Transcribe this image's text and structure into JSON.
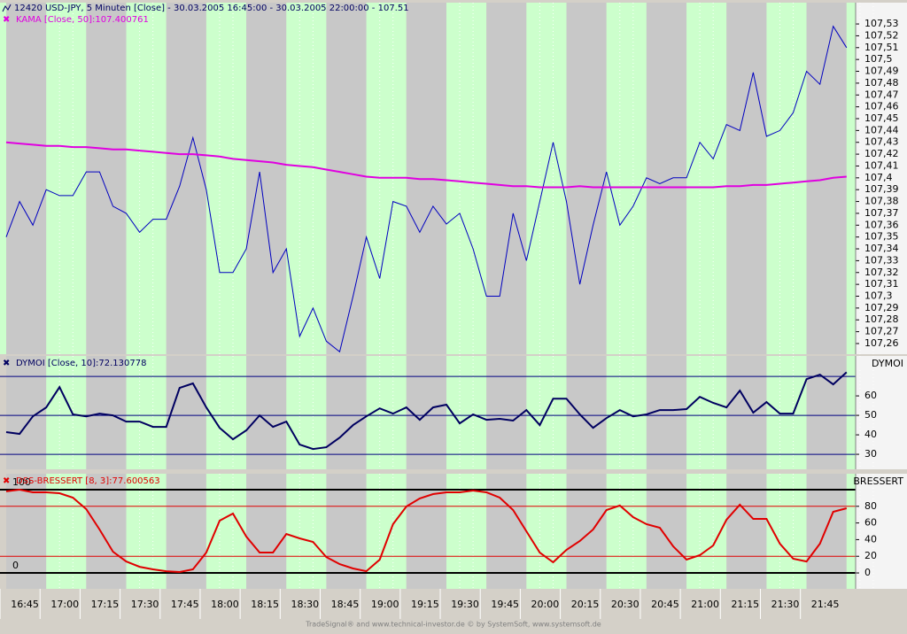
{
  "chart_data": [
    {
      "type": "line",
      "title": "12420  USD-JPY, 5 Minuten [Close] - 30.03.2005 16:45:00 - 30.03.2005 22:00:00 - 107.51",
      "ylim": [
        107.251,
        107.548
      ],
      "yticks": [
        {
          "value": 107.26,
          "label": "107,26"
        },
        {
          "value": 107.27,
          "label": "107,27"
        },
        {
          "value": 107.28,
          "label": "107,28"
        },
        {
          "value": 107.29,
          "label": "107,29"
        },
        {
          "value": 107.3,
          "label": "107,3"
        },
        {
          "value": 107.31,
          "label": "107,31"
        },
        {
          "value": 107.32,
          "label": "107,32"
        },
        {
          "value": 107.33,
          "label": "107,33"
        },
        {
          "value": 107.34,
          "label": "107,34"
        },
        {
          "value": 107.35,
          "label": "107,35"
        },
        {
          "value": 107.36,
          "label": "107,36"
        },
        {
          "value": 107.37,
          "label": "107,37"
        },
        {
          "value": 107.38,
          "label": "107,38"
        },
        {
          "value": 107.39,
          "label": "107,39"
        },
        {
          "value": 107.4,
          "label": "107,4"
        },
        {
          "value": 107.41,
          "label": "107,41"
        },
        {
          "value": 107.42,
          "label": "107,42"
        },
        {
          "value": 107.43,
          "label": "107,43"
        },
        {
          "value": 107.44,
          "label": "107,44"
        },
        {
          "value": 107.45,
          "label": "107,45"
        },
        {
          "value": 107.46,
          "label": "107,46"
        },
        {
          "value": 107.47,
          "label": "107,47"
        },
        {
          "value": 107.48,
          "label": "107,48"
        },
        {
          "value": 107.49,
          "label": "107,49"
        },
        {
          "value": 107.5,
          "label": "107,5"
        },
        {
          "value": 107.51,
          "label": "107,51"
        },
        {
          "value": 107.52,
          "label": "107,52"
        },
        {
          "value": 107.53,
          "label": "107,53"
        }
      ],
      "series": [
        {
          "color": "#0000c0",
          "values": [
            107.35,
            107.38,
            107.36,
            107.39,
            107.385,
            107.385,
            107.405,
            107.405,
            107.376,
            107.37,
            107.354,
            107.365,
            107.365,
            107.393,
            107.434,
            107.39,
            107.32,
            107.32,
            107.34,
            107.405,
            107.32,
            107.34,
            107.266,
            107.29,
            107.262,
            107.253,
            107.3,
            107.35,
            107.315,
            107.38,
            107.376,
            107.354,
            107.376,
            107.361,
            107.37,
            107.34,
            107.3,
            107.3,
            107.37,
            107.33,
            107.38,
            107.43,
            107.38,
            107.31,
            107.36,
            107.405,
            107.36,
            107.376,
            107.4,
            107.395,
            107.4,
            107.4,
            107.43,
            107.416,
            107.445,
            107.44,
            107.489,
            107.435,
            107.44,
            107.455,
            107.49,
            107.479,
            107.528,
            107.51
          ]
        },
        {
          "name": "KAMA [Close, 50]:107.400761",
          "color": "#e000e0",
          "values": [
            107.43,
            107.429,
            107.428,
            107.427,
            107.427,
            107.426,
            107.426,
            107.425,
            107.424,
            107.424,
            107.423,
            107.422,
            107.421,
            107.42,
            107.42,
            107.419,
            107.418,
            107.416,
            107.415,
            107.414,
            107.413,
            107.411,
            107.41,
            107.409,
            107.407,
            107.405,
            107.403,
            107.401,
            107.4,
            107.4,
            107.4,
            107.399,
            107.399,
            107.398,
            107.397,
            107.396,
            107.395,
            107.394,
            107.393,
            107.393,
            107.392,
            107.392,
            107.392,
            107.393,
            107.392,
            107.392,
            107.392,
            107.392,
            107.392,
            107.392,
            107.392,
            107.392,
            107.392,
            107.392,
            107.393,
            107.393,
            107.394,
            107.394,
            107.395,
            107.396,
            107.397,
            107.398,
            107.4,
            107.401
          ]
        }
      ]
    },
    {
      "type": "line",
      "axis_label": "DYMOI",
      "ylim": [
        22.3,
        80.5
      ],
      "yticks": [
        30,
        40,
        50,
        60
      ],
      "hlines": [
        70,
        50,
        30
      ],
      "hline_color": "#000080",
      "series": [
        {
          "name": "DYMOI [Close, 10]:72.130778",
          "color": "#000060",
          "values": [
            41.4,
            40.5,
            49.5,
            54.1,
            64.5,
            50.5,
            49.5,
            50.9,
            50,
            46.8,
            46.8,
            44.1,
            44.1,
            64.1,
            66.4,
            54.1,
            43.6,
            37.7,
            42.3,
            50,
            44.1,
            46.8,
            35,
            32.7,
            33.6,
            38.6,
            45,
            49.5,
            53.6,
            50.9,
            54.1,
            47.7,
            54.1,
            55.5,
            45.9,
            50.5,
            47.7,
            48.2,
            47.3,
            52.7,
            45,
            58.6,
            58.6,
            50.5,
            43.6,
            48.6,
            52.7,
            49.5,
            50.5,
            52.7,
            52.7,
            53.2,
            59.5,
            56.4,
            54.1,
            62.7,
            51.4,
            56.8,
            50.9,
            50.9,
            68.6,
            70.9,
            65.9,
            72.13
          ]
        }
      ]
    },
    {
      "type": "line",
      "axis_label": "BRESSERT",
      "ylim": [
        -19.1,
        119.1
      ],
      "yticks": [
        0,
        20,
        40,
        60,
        80
      ],
      "hlines_black": [
        0,
        100
      ],
      "hlines_red": [
        20,
        80
      ],
      "categories": [
        null,
        "16:45",
        null,
        null,
        "17:00",
        null,
        null,
        "17:15",
        null,
        null,
        "17:30",
        null,
        null,
        "17:45",
        null,
        null,
        "18:00",
        null,
        null,
        "18:15",
        null,
        null,
        "18:30",
        null,
        null,
        "18:45",
        null,
        null,
        "19:00",
        null,
        null,
        "19:15",
        null,
        null,
        "19:30",
        null,
        null,
        "19:45",
        null,
        null,
        "20:00",
        null,
        null,
        "20:15",
        null,
        null,
        "20:30",
        null,
        null,
        "20:45",
        null,
        null,
        "21:00",
        null,
        null,
        "21:15",
        null,
        null,
        "21:30",
        null,
        null,
        "21:45",
        null,
        null
      ],
      "series": [
        {
          "name": "DSS-BRESSERT [8, 3]:77.600563",
          "color": "#e00000",
          "values": [
            97.9,
            100,
            96.8,
            96.8,
            95.7,
            90.4,
            76.6,
            52.1,
            25.5,
            13.8,
            7.4,
            4.3,
            2.1,
            1.1,
            4.3,
            24.5,
            62.8,
            71.3,
            43.6,
            24.5,
            24.5,
            46.8,
            41.5,
            37.2,
            19.1,
            10.6,
            5.3,
            2.1,
            16,
            58.5,
            79.8,
            89.4,
            94.7,
            96.8,
            96.8,
            98.9,
            96.8,
            90.4,
            75.5,
            50,
            24.5,
            12.8,
            27.7,
            38.3,
            52.1,
            75.5,
            80.9,
            67,
            58.5,
            54.3,
            31.9,
            16,
            21.3,
            33,
            63.8,
            81.9,
            64.9,
            64.9,
            35.1,
            17,
            13.8,
            35.1,
            73.4,
            77.6
          ]
        }
      ]
    }
  ],
  "footer": "TradeSignal® and www.technical-investor.de © by SystemSoft, www.systemsoft.de"
}
